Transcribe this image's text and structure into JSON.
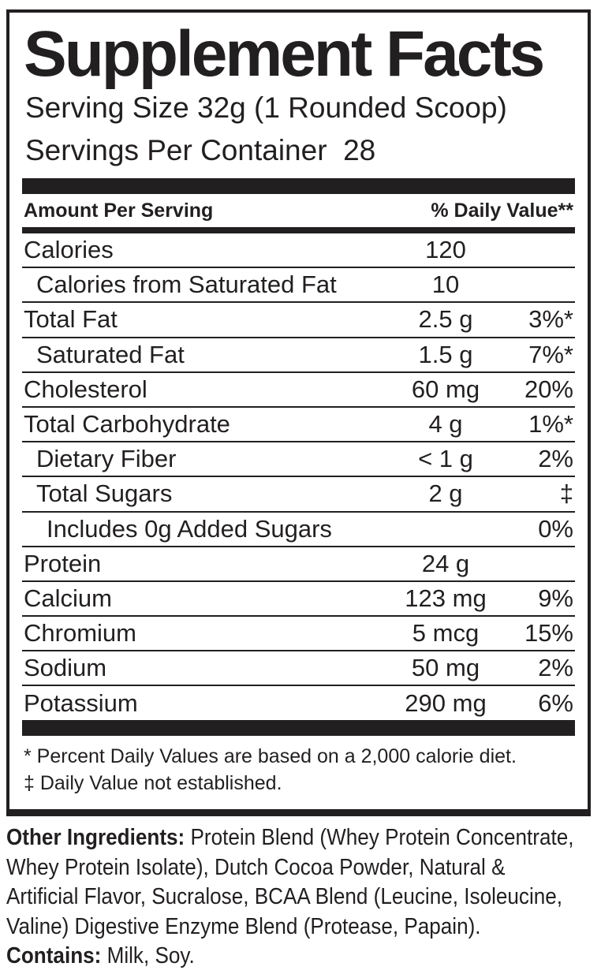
{
  "label": {
    "title": "Supplement Facts",
    "serving_size": "Serving Size 32g (1 Rounded Scoop)",
    "servings_per_container": "Servings Per Container  28",
    "header": {
      "left": "Amount Per Serving",
      "right": "% Daily Value**"
    },
    "rows": [
      {
        "name": "Calories",
        "amount": "120",
        "dv": "",
        "indent": 0
      },
      {
        "name": "Calories from Saturated Fat",
        "amount": "10",
        "dv": "",
        "indent": 1
      },
      {
        "name": "Total Fat",
        "amount": "2.5 g",
        "dv": "3%*",
        "indent": 0
      },
      {
        "name": "Saturated Fat",
        "amount": "1.5 g",
        "dv": "7%*",
        "indent": 1
      },
      {
        "name": "Cholesterol",
        "amount": "60 mg",
        "dv": "20%",
        "indent": 0
      },
      {
        "name": "Total Carbohydrate",
        "amount": "4 g",
        "dv": "1%*",
        "indent": 0
      },
      {
        "name": "Dietary Fiber",
        "amount": "< 1 g",
        "dv": "2%",
        "indent": 1
      },
      {
        "name": "Total Sugars",
        "amount": "2 g",
        "dv": "‡",
        "indent": 1
      },
      {
        "name": "Includes 0g Added Sugars",
        "amount": "",
        "dv": "0%",
        "indent": 2
      },
      {
        "name": "Protein",
        "amount": "24 g",
        "dv": "",
        "indent": 0
      },
      {
        "name": "Calcium",
        "amount": "123 mg",
        "dv": "9%",
        "indent": 0
      },
      {
        "name": "Chromium",
        "amount": "5 mcg",
        "dv": "15%",
        "indent": 0
      },
      {
        "name": "Sodium",
        "amount": "50 mg",
        "dv": "2%",
        "indent": 0
      },
      {
        "name": "Potassium",
        "amount": "290 mg",
        "dv": "6%",
        "indent": 0
      }
    ],
    "footnotes": [
      "* Percent Daily Values are based on a 2,000 calorie diet.",
      "‡ Daily Value not established."
    ]
  },
  "ingredients": {
    "bold_label": "Other Ingredients:",
    "line1_rest": " Protein Blend (Whey Protein Concentrate,",
    "line2": "Whey Protein Isolate), Dutch Cocoa Powder, Natural &",
    "line3": "Artificial Flavor, Sucralose, BCAA Blend (Leucine, Isoleucine,",
    "line4": "Valine) Digestive Enzyme Blend (Protease, Papain).",
    "contains_label": "Contains:",
    "contains_rest": " Milk, Soy."
  },
  "colors": {
    "ink": "#221f20",
    "background": "#ffffff"
  }
}
